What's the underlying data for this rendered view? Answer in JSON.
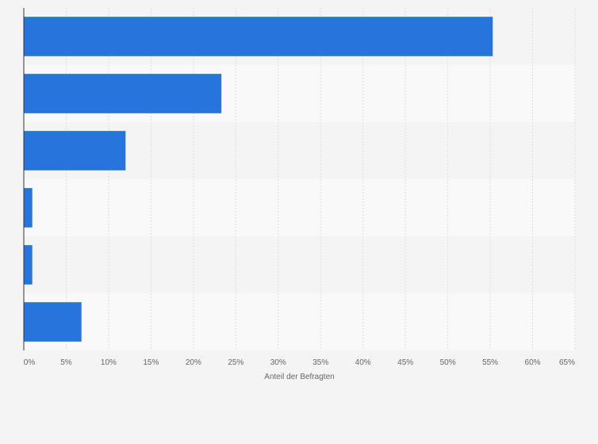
{
  "chart_data": {
    "type": "bar",
    "orientation": "horizontal",
    "categories": [
      "",
      "",
      "",
      "",
      "",
      ""
    ],
    "values": [
      55.3,
      23.3,
      12.0,
      1.0,
      1.0,
      6.8
    ],
    "xlabel": "Anteil der Befragten",
    "ylabel": "",
    "xlim": [
      0,
      65
    ],
    "x_ticks": [
      "0%",
      "5%",
      "10%",
      "15%",
      "20%",
      "25%",
      "30%",
      "35%",
      "40%",
      "45%",
      "50%",
      "55%",
      "60%",
      "65%"
    ],
    "grid": true,
    "bar_color": "#2775dc",
    "band_colors": [
      "#f4f4f4",
      "#f9f9f9"
    ],
    "background": "#f4f4f4"
  }
}
